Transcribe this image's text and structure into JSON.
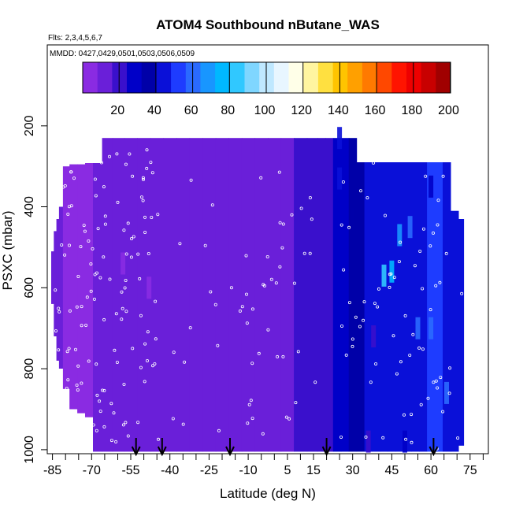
{
  "chart_data": {
    "type": "heatmap",
    "title": "ATOM4 Southbound nButane_WAS",
    "subtitle_flights": "Flts: 2,3,4,5,6,7",
    "subtitle_dates": "MMDD: 0427,0429,0501,0503,0506,0509",
    "xlabel": "Latitude (deg N)",
    "ylabel": "PSXC (mbar)",
    "xlim": [
      -87,
      82
    ],
    "ylim": [
      1010,
      0
    ],
    "x_tick_labels": [
      -85,
      -70,
      -55,
      -40,
      -25,
      -10,
      5,
      15,
      30,
      45,
      60,
      75
    ],
    "x_minor_ticks": [
      -85,
      -80,
      -75,
      -70,
      -65,
      -60,
      -55,
      -50,
      -45,
      -40,
      -35,
      -30,
      -25,
      -20,
      -15,
      -10,
      -5,
      0,
      5,
      10,
      15,
      20,
      25,
      30,
      35,
      40,
      45,
      50,
      55,
      60,
      65,
      70,
      75,
      80
    ],
    "y_ticks": [
      200,
      400,
      600,
      800,
      1000
    ],
    "colorbar": {
      "min": 0,
      "max": 200,
      "tick_labels": [
        20,
        40,
        60,
        80,
        100,
        120,
        140,
        160,
        180,
        200
      ],
      "colors": [
        "#8a2be2",
        "#6a1fd9",
        "#3a10cc",
        "#0000c8",
        "#0000a8",
        "#0a10d8",
        "#1e3cff",
        "#2a6aff",
        "#1896ff",
        "#00b8ff",
        "#30c8ff",
        "#7fd6ff",
        "#bfe8ff",
        "#e8f6ff",
        "#ffffe8",
        "#fff5a0",
        "#ffe040",
        "#ffc400",
        "#ffa000",
        "#ff7a00",
        "#ff4800",
        "#ff1400",
        "#ee0000",
        "#c80000",
        "#a00000"
      ]
    },
    "columns": [
      {
        "lat": -85,
        "p_top": 510,
        "p_bot": 640,
        "value": 8
      },
      {
        "lat": -84,
        "p_top": 460,
        "p_bot": 720,
        "value": 8
      },
      {
        "lat": -83,
        "p_top": 430,
        "p_bot": 780,
        "value": 8
      },
      {
        "lat": -82,
        "p_top": 400,
        "p_bot": 800,
        "value": 8
      },
      {
        "lat": -80,
        "p_top": 300,
        "p_bot": 850,
        "value": 7
      },
      {
        "lat": -77,
        "p_top": 295,
        "p_bot": 900,
        "value": 7
      },
      {
        "lat": -74,
        "p_top": 295,
        "p_bot": 910,
        "value": 7
      },
      {
        "lat": -71,
        "p_top": 292,
        "p_bot": 920,
        "value": 7
      },
      {
        "lat": -68,
        "p_top": 292,
        "p_bot": 1005,
        "value": 8
      },
      {
        "lat": -64,
        "p_top": 230,
        "p_bot": 1005,
        "value": 9
      },
      {
        "lat": -60,
        "p_top": 230,
        "p_bot": 1005,
        "value": 9
      },
      {
        "lat": -55,
        "p_top": 230,
        "p_bot": 1005,
        "value": 10
      },
      {
        "lat": -50,
        "p_top": 230,
        "p_bot": 1005,
        "value": 10
      },
      {
        "lat": -45,
        "p_top": 230,
        "p_bot": 1005,
        "value": 9
      },
      {
        "lat": -40,
        "p_top": 230,
        "p_bot": 1005,
        "value": 10
      },
      {
        "lat": -35,
        "p_top": 230,
        "p_bot": 1005,
        "value": 10
      },
      {
        "lat": -30,
        "p_top": 230,
        "p_bot": 1005,
        "value": 10
      },
      {
        "lat": -25,
        "p_top": 230,
        "p_bot": 1005,
        "value": 11
      },
      {
        "lat": -20,
        "p_top": 230,
        "p_bot": 1005,
        "value": 11
      },
      {
        "lat": -15,
        "p_top": 230,
        "p_bot": 1005,
        "value": 12
      },
      {
        "lat": -10,
        "p_top": 230,
        "p_bot": 1005,
        "value": 12
      },
      {
        "lat": -5,
        "p_top": 230,
        "p_bot": 1005,
        "value": 13
      },
      {
        "lat": 0,
        "p_top": 230,
        "p_bot": 1005,
        "value": 14
      },
      {
        "lat": 5,
        "p_top": 230,
        "p_bot": 1005,
        "value": 15
      },
      {
        "lat": 10,
        "p_top": 230,
        "p_bot": 1005,
        "value": 16
      },
      {
        "lat": 15,
        "p_top": 230,
        "p_bot": 1005,
        "value": 17
      },
      {
        "lat": 18,
        "p_top": 230,
        "p_bot": 1005,
        "value": 18
      },
      {
        "lat": 21,
        "p_top": 230,
        "p_bot": 1005,
        "value": 20
      },
      {
        "lat": 24,
        "p_top": 230,
        "p_bot": 1005,
        "value": 24
      },
      {
        "lat": 27,
        "p_top": 230,
        "p_bot": 1005,
        "value": 28
      },
      {
        "lat": 30,
        "p_top": 230,
        "p_bot": 1005,
        "value": 34
      },
      {
        "lat": 33,
        "p_top": 290,
        "p_bot": 1005,
        "value": 38
      },
      {
        "lat": 36,
        "p_top": 290,
        "p_bot": 1005,
        "value": 42
      },
      {
        "lat": 39,
        "p_top": 290,
        "p_bot": 1005,
        "value": 44
      },
      {
        "lat": 42,
        "p_top": 290,
        "p_bot": 1005,
        "value": 45
      },
      {
        "lat": 45,
        "p_top": 290,
        "p_bot": 1005,
        "value": 46
      },
      {
        "lat": 48,
        "p_top": 290,
        "p_bot": 1005,
        "value": 44
      },
      {
        "lat": 51,
        "p_top": 290,
        "p_bot": 1005,
        "value": 45
      },
      {
        "lat": 54,
        "p_top": 290,
        "p_bot": 1005,
        "value": 46
      },
      {
        "lat": 57,
        "p_top": 290,
        "p_bot": 1005,
        "value": 47
      },
      {
        "lat": 60,
        "p_top": 290,
        "p_bot": 1005,
        "value": 48
      },
      {
        "lat": 63,
        "p_top": 290,
        "p_bot": 1005,
        "value": 48
      },
      {
        "lat": 66,
        "p_top": 290,
        "p_bot": 1005,
        "value": 47
      },
      {
        "lat": 69,
        "p_top": 410,
        "p_bot": 1005,
        "value": 46
      },
      {
        "lat": 72,
        "p_top": 430,
        "p_bot": 990,
        "value": 45
      }
    ],
    "highlights": [
      {
        "lat": -48,
        "p": 600,
        "value": 4
      },
      {
        "lat": -58,
        "p": 540,
        "value": 3
      },
      {
        "lat": 25,
        "p": 230,
        "value": 40
      },
      {
        "lat": 25,
        "p": 330,
        "value": 42
      },
      {
        "lat": 30,
        "p": 430,
        "value": 38
      },
      {
        "lat": 42,
        "p": 570,
        "value": 80
      },
      {
        "lat": 45,
        "p": 560,
        "value": 72
      },
      {
        "lat": 48,
        "p": 470,
        "value": 70
      },
      {
        "lat": 52,
        "p": 450,
        "value": 58
      },
      {
        "lat": 55,
        "p": 700,
        "value": 60
      },
      {
        "lat": 60,
        "p": 700,
        "value": 60
      },
      {
        "lat": 63,
        "p": 750,
        "value": 55
      },
      {
        "lat": 66,
        "p": 860,
        "value": 58
      },
      {
        "lat": 60,
        "p": 350,
        "value": 30
      },
      {
        "lat": 38,
        "p": 720,
        "value": 20
      },
      {
        "lat": 50,
        "p": 980,
        "value": 24
      },
      {
        "lat": 36,
        "p": 980,
        "value": 20
      }
    ],
    "arrows_lat": [
      -53,
      -43,
      -17,
      20,
      61
    ]
  }
}
